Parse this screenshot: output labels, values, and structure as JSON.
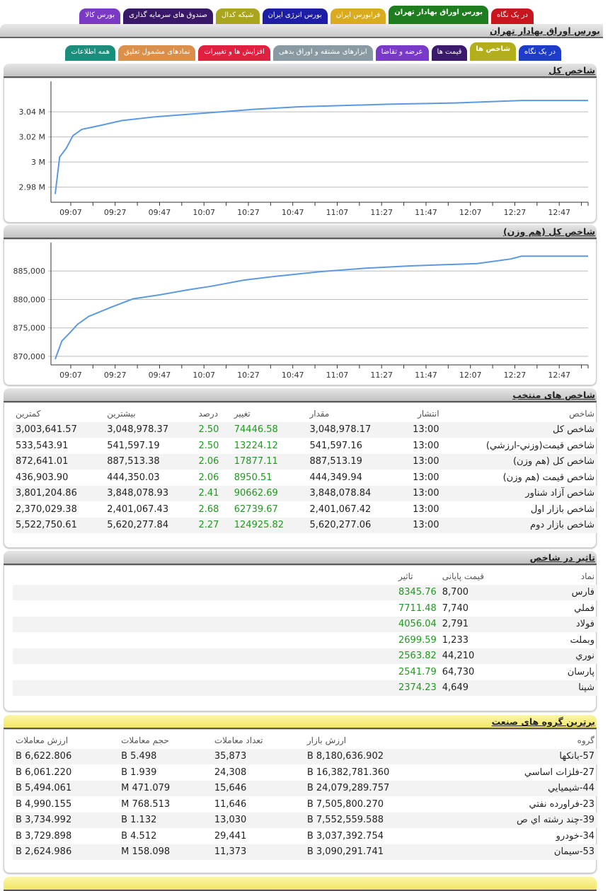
{
  "top_tabs": [
    {
      "label": "در یک نگاه",
      "color": "#c8161e"
    },
    {
      "label": "بورس اوراق بهادار تهران",
      "color": "#1e7d1e",
      "active": true
    },
    {
      "label": "فرابورس ایران",
      "color": "#d9ab1f"
    },
    {
      "label": "بورس انرژی ایران",
      "color": "#1d1da6"
    },
    {
      "label": "شبکه کدال",
      "color": "#a9a61e"
    },
    {
      "label": "صندوق های سرمایه گذاری",
      "color": "#391868"
    },
    {
      "label": "بورس کالا",
      "color": "#7b3ac6"
    }
  ],
  "page_title": "بورس اوراق بهادار تهران",
  "sub_tabs": [
    {
      "label": "در یک نگاه",
      "color": "#1d3cc8"
    },
    {
      "label": "شاخص ها",
      "color": "#b2ae1c",
      "active": true
    },
    {
      "label": "قیمت ها",
      "color": "#3b1a6c"
    },
    {
      "label": "عرضه و تقاضا",
      "color": "#7a3ac8"
    },
    {
      "label": "ابزارهای مشتقه و اوراق بدهی",
      "color": "#8a9aa2"
    },
    {
      "label": "افزایش ها و تغییرات",
      "color": "#e0203f"
    },
    {
      "label": "نمادهای مشمول تعلیق",
      "color": "#d9904c"
    },
    {
      "label": "همه اطلاعات",
      "color": "#1c8c7c"
    }
  ],
  "chart_data": [
    {
      "type": "line",
      "title": "شاخص کل",
      "line_color": "#5b9ae0",
      "grid": true,
      "yticks": [
        "2.98 M",
        "3 M",
        "3.02 M",
        "3.04 M"
      ],
      "ytick_values": [
        2.98,
        3.0,
        3.02,
        3.04
      ],
      "ylim": [
        2.968,
        3.062
      ],
      "xticks": [
        "09:07",
        "09:27",
        "09:47",
        "10:07",
        "10:27",
        "10:47",
        "11:07",
        "11:27",
        "11:47",
        "12:07",
        "12:27",
        "12:47"
      ],
      "x": [
        "09:00",
        "09:02",
        "09:05",
        "09:08",
        "09:12",
        "09:20",
        "09:30",
        "09:45",
        "10:00",
        "10:15",
        "10:30",
        "10:50",
        "11:30",
        "12:00",
        "12:30",
        "13:00"
      ],
      "y": [
        2.9745,
        3.004,
        3.011,
        3.021,
        3.026,
        3.029,
        3.033,
        3.036,
        3.038,
        3.04,
        3.042,
        3.044,
        3.046,
        3.047,
        3.049,
        3.049
      ]
    },
    {
      "type": "line",
      "title": "شاخص کل (هم وزن)",
      "line_color": "#5b9ae0",
      "grid": true,
      "yticks": [
        "870,000",
        "875,000",
        "880,000",
        "885,000"
      ],
      "ytick_values": [
        870000,
        875000,
        880000,
        885000
      ],
      "ylim": [
        868500,
        889500
      ],
      "xticks": [
        "09:07",
        "09:27",
        "09:47",
        "10:07",
        "10:27",
        "10:47",
        "11:07",
        "11:27",
        "11:47",
        "12:07",
        "12:27",
        "12:47"
      ],
      "x": [
        "09:00",
        "09:03",
        "09:07",
        "09:10",
        "09:15",
        "09:25",
        "09:35",
        "09:47",
        "10:00",
        "10:10",
        "10:25",
        "10:40",
        "11:00",
        "11:20",
        "11:40",
        "12:10",
        "12:25",
        "12:30",
        "13:00"
      ],
      "y": [
        869500,
        872700,
        874300,
        875600,
        877000,
        878600,
        880100,
        880800,
        881700,
        882300,
        883400,
        884100,
        884900,
        885500,
        885900,
        886300,
        887100,
        887600,
        887600
      ]
    }
  ],
  "selected_indices": {
    "title": "شاخص های منتخب",
    "headers": [
      "شاخص",
      "انتشار",
      "مقدار",
      "تغییر",
      "درصد",
      "بیشترین",
      "کمترین"
    ],
    "rows": [
      [
        "شاخص کل",
        "13:00",
        "3,048,978.17",
        "74446.58",
        "2.50",
        "3,048,978.37",
        "3,003,641.57"
      ],
      [
        "شاخص قیمت(وزني-ارزشي)",
        "13:00",
        "541,597.16",
        "13224.12",
        "2.50",
        "541,597.19",
        "533,543.91"
      ],
      [
        "شاخص کل (هم وزن)",
        "13:00",
        "887,513.19",
        "17877.11",
        "2.06",
        "887,513.38",
        "872,641.01"
      ],
      [
        "شاخص قیمت (هم وزن)",
        "13:00",
        "444,349.94",
        "8950.51",
        "2.06",
        "444,350.03",
        "436,903.90"
      ],
      [
        "شاخص آزاد شناور",
        "13:00",
        "3,848,078.84",
        "90662.69",
        "2.41",
        "3,848,078.93",
        "3,801,204.86"
      ],
      [
        "شاخص بازار اول",
        "13:00",
        "2,401,067.42",
        "62739.67",
        "2.68",
        "2,401,067.43",
        "2,370,029.38"
      ],
      [
        "شاخص بازار دوم",
        "13:00",
        "5,620,277.06",
        "124925.82",
        "2.27",
        "5,620,277.84",
        "5,522,750.61"
      ]
    ]
  },
  "index_impact": {
    "title": "تاثیر در شاخص",
    "headers": [
      "نماد",
      "قیمت پایانی",
      "تاثیر"
    ],
    "rows": [
      [
        "فارس",
        "8,700",
        "8345.76"
      ],
      [
        "فملي",
        "7,740",
        "7711.48"
      ],
      [
        "فولاد",
        "2,791",
        "4056.04"
      ],
      [
        "وبملت",
        "1,233",
        "2699.59"
      ],
      [
        "نوري",
        "44,210",
        "2563.82"
      ],
      [
        "پارسان",
        "64,730",
        "2541.79"
      ],
      [
        "شپنا",
        "4,649",
        "2374.23"
      ]
    ]
  },
  "top_industries": {
    "title": "برترین گروه های صنعت",
    "headers": [
      "گروه",
      "ارزش بازار",
      "تعداد معاملات",
      "حجم معاملات",
      "ارزش معاملات"
    ],
    "rows": [
      [
        "57-بانکها",
        "8,180,636.902 B",
        "35,873",
        "5.498 B",
        "6,622.806 B"
      ],
      [
        "27-فلزات اساسي",
        "16,382,781.360 B",
        "24,308",
        "1.939 B",
        "6,061.220 B"
      ],
      [
        "44-شيميايي",
        "24,079,289.757 B",
        "15,646",
        "471.079 M",
        "5,494.061 B"
      ],
      [
        "23-فراورده نفتي",
        "7,505,800.270 B",
        "11,646",
        "768.513 M",
        "4,990.155 B"
      ],
      [
        "39-چند رشته اي ص",
        "7,552,559.588 B",
        "13,030",
        "1.132 B",
        "3,734.992 B"
      ],
      [
        "34-خودرو",
        "3,037,392.754 B",
        "29,441",
        "4.512 B",
        "3,729.898 B"
      ],
      [
        "53-سيمان",
        "3,090,291.741 B",
        "11,373",
        "158.098 M",
        "2,624.986 B"
      ]
    ]
  }
}
